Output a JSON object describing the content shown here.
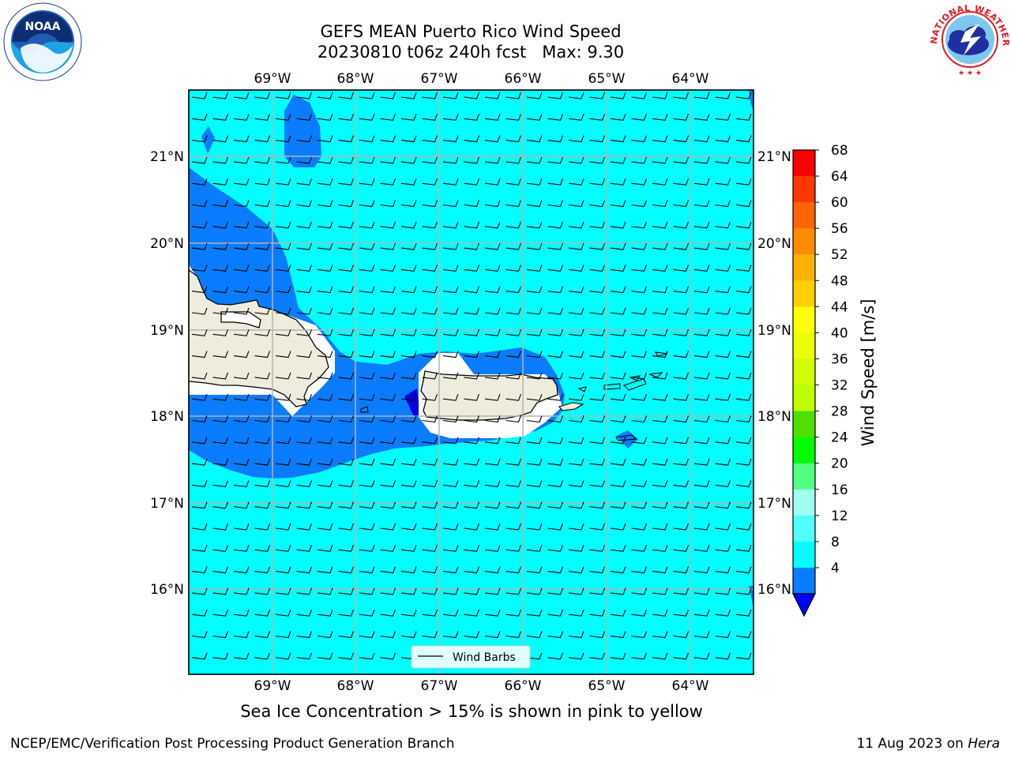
{
  "title": {
    "line1": "GEFS MEAN Puerto Rico Wind Speed",
    "line2": "20230810 t06z 240h fcst   Max: 9.30"
  },
  "map": {
    "lon_labels": [
      "69°W",
      "68°W",
      "67°W",
      "66°W",
      "65°W",
      "64°W"
    ],
    "lat_labels": [
      "21°N",
      "20°N",
      "19°N",
      "18°N",
      "17°N",
      "16°N"
    ],
    "land_color": "#eeecdc",
    "legend_label": "Wind Barbs",
    "fill_colors": {
      "ocean_8_12": "#00ffff",
      "ocean_4_8": "#0a7cff",
      "ocean_below_4": "#0000e0",
      "gridline": "#b4b4b4"
    }
  },
  "colorbar": {
    "label": "Wind Speed [m/s]",
    "tick_labels": [
      "68",
      "64",
      "60",
      "56",
      "52",
      "48",
      "44",
      "40",
      "36",
      "32",
      "28",
      "24",
      "20",
      "16",
      "12",
      "8",
      "4"
    ],
    "colors": [
      "#ff0000",
      "#ff3800",
      "#ff6400",
      "#ff8c00",
      "#ffb000",
      "#ffd000",
      "#ffff00",
      "#ecff00",
      "#d2ff00",
      "#beff00",
      "#50e000",
      "#00ff00",
      "#50ff80",
      "#a0fff0",
      "#50ffff",
      "#00ffff",
      "#0a7cff"
    ],
    "extend_color": "#0000ff"
  },
  "note": "Sea Ice Concentration > 15% is shown in pink to yellow",
  "footer": {
    "left": "NCEP/EMC/Verification Post Processing Product Generation Branch",
    "right_prefix": "11 Aug 2023 on ",
    "right_host": "Hera"
  },
  "logos": {
    "noaa_text": "NOAA",
    "nws_text": "NATIONAL WEATHER SERVICE"
  }
}
